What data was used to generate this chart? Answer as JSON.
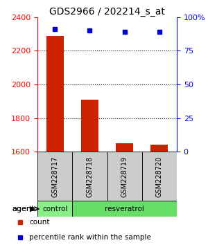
{
  "title": "GDS2966 / 202214_s_at",
  "samples": [
    "GSM228717",
    "GSM228718",
    "GSM228719",
    "GSM228720"
  ],
  "counts": [
    2290,
    1910,
    1650,
    1645
  ],
  "percentile_ranks": [
    91,
    90,
    89,
    89
  ],
  "ylim_left": [
    1600,
    2400
  ],
  "ylim_right": [
    0,
    100
  ],
  "yticks_left": [
    1600,
    1800,
    2000,
    2200,
    2400
  ],
  "yticks_right": [
    0,
    25,
    50,
    75,
    100
  ],
  "ytick_labels_right": [
    "0",
    "25",
    "50",
    "75",
    "100%"
  ],
  "bar_color": "#cc2200",
  "dot_color": "#0000cc",
  "agent_groups": [
    {
      "label": "control",
      "color": "#88ee88",
      "span": [
        0,
        1
      ]
    },
    {
      "label": "resveratrol",
      "color": "#66dd66",
      "span": [
        1,
        4
      ]
    }
  ],
  "agent_label": "agent",
  "legend_items": [
    {
      "color": "#cc2200",
      "label": "count"
    },
    {
      "color": "#0000cc",
      "label": "percentile rank within the sample"
    }
  ],
  "sample_box_color": "#cccccc",
  "grid_color": "#000000",
  "title_fontsize": 10,
  "tick_fontsize": 8,
  "sample_fontsize": 7,
  "legend_fontsize": 7.5
}
